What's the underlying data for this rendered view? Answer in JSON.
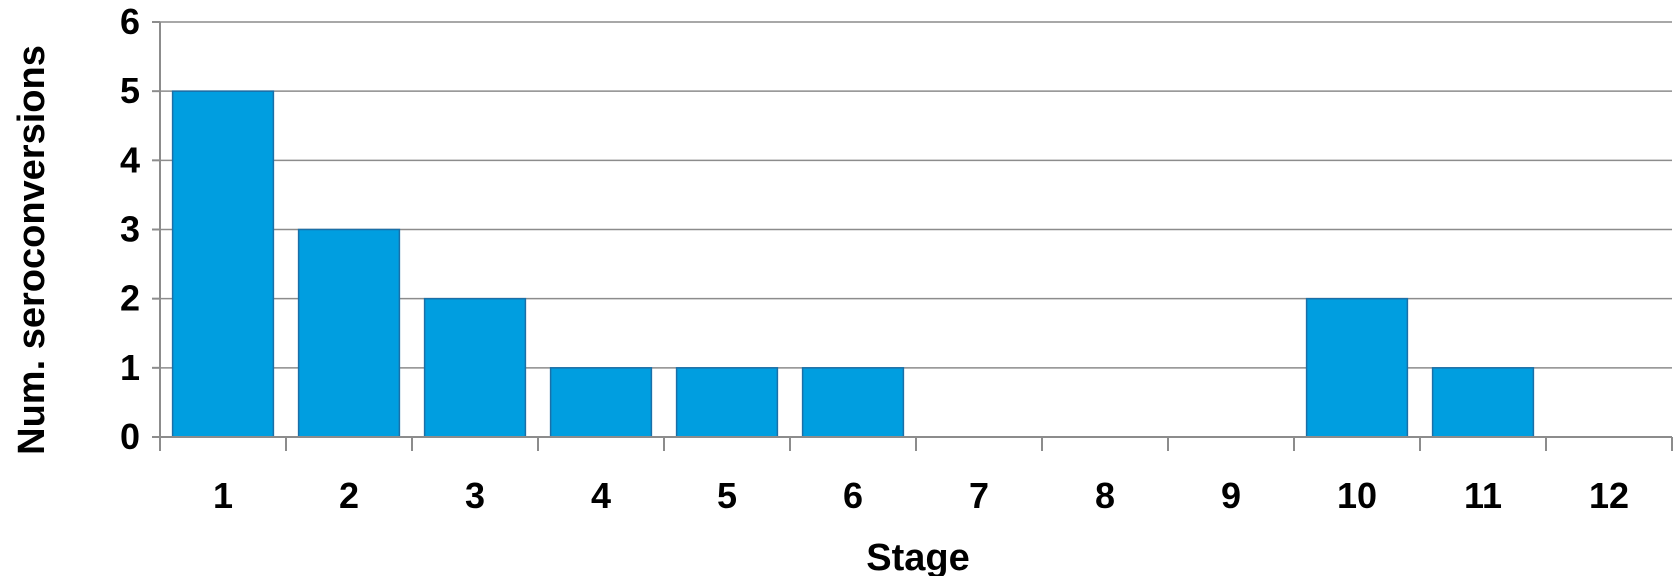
{
  "chart_data": {
    "type": "bar",
    "categories": [
      "1",
      "2",
      "3",
      "4",
      "5",
      "6",
      "7",
      "8",
      "9",
      "10",
      "11",
      "12"
    ],
    "values": [
      5,
      3,
      2,
      1,
      1,
      1,
      0,
      0,
      0,
      2,
      1,
      0
    ],
    "title": "",
    "xlabel": "Stage",
    "ylabel": "Num. seroconversions",
    "ylim": [
      0,
      6
    ],
    "yticks": [
      "0",
      "1",
      "2",
      "3",
      "4",
      "5",
      "6"
    ],
    "grid": true,
    "legend": "none",
    "bar_color": "#009ee0"
  }
}
